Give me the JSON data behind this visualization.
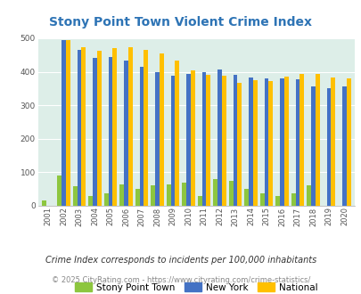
{
  "title": "Stony Point Town Violent Crime Index",
  "years": [
    2001,
    2002,
    2003,
    2004,
    2005,
    2006,
    2007,
    2008,
    2009,
    2010,
    2011,
    2012,
    2013,
    2014,
    2015,
    2016,
    2017,
    2018,
    2019,
    2020
  ],
  "stony_point": [
    15,
    90,
    58,
    28,
    37,
    65,
    50,
    60,
    65,
    68,
    28,
    80,
    75,
    50,
    38,
    30,
    38,
    60,
    0,
    0
  ],
  "new_york": [
    0,
    495,
    465,
    440,
    445,
    432,
    415,
    400,
    388,
    394,
    400,
    407,
    391,
    383,
    381,
    381,
    377,
    355,
    350,
    357
  ],
  "national": [
    0,
    495,
    473,
    463,
    470,
    473,
    465,
    455,
    432,
    405,
    390,
    388,
    368,
    376,
    373,
    386,
    394,
    393,
    382,
    381
  ],
  "stony_color": "#8dc63f",
  "ny_color": "#4472c4",
  "national_color": "#ffc000",
  "bg_color": "#ffffff",
  "plot_bg": "#ddeee8",
  "title_color": "#2e74b5",
  "footer1": "Crime Index corresponds to incidents per 100,000 inhabitants",
  "footer2": "© 2025 CityRating.com - https://www.cityrating.com/crime-statistics/",
  "ylim": [
    0,
    500
  ],
  "yticks": [
    0,
    100,
    200,
    300,
    400,
    500
  ]
}
